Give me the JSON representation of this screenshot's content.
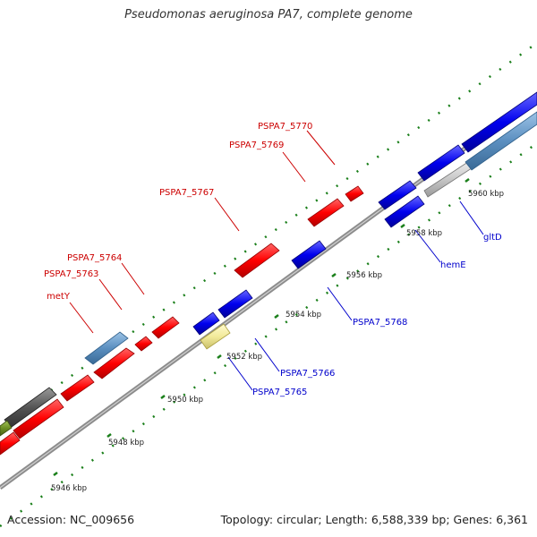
{
  "title": "Pseudomonas aeruginosa PA7, complete genome",
  "footer": {
    "accession": "Accession: NC_009656",
    "summary": "Topology: circular; Length: 6,588,339 bp; Genes: 6,361"
  },
  "colors": {
    "forward_gene": "#ff0000",
    "reverse_gene": "#0000ee",
    "steelblue_gene": "#5b8fc0",
    "grey_gene": "#555555",
    "pale_gene": "#f2ea9a",
    "olive_gene": "#6b8e23",
    "backbone": "#8c8c8c",
    "tick_dots": "#1a7f1a"
  },
  "ticks": [
    "5946 kbp",
    "5948 kbp",
    "5950 kbp",
    "5952 kbp",
    "5954 kbp",
    "5956 kbp",
    "5958 kbp",
    "5960 kbp"
  ],
  "labels": [
    {
      "text": "PSPA7_5770",
      "strand": "forward"
    },
    {
      "text": "PSPA7_5769",
      "strand": "forward"
    },
    {
      "text": "PSPA7_5767",
      "strand": "forward"
    },
    {
      "text": "PSPA7_5764",
      "strand": "forward"
    },
    {
      "text": "PSPA7_5763",
      "strand": "forward"
    },
    {
      "text": "metY",
      "strand": "forward"
    },
    {
      "text": "PSPA7_5768",
      "strand": "reverse"
    },
    {
      "text": "PSPA7_5766",
      "strand": "reverse"
    },
    {
      "text": "PSPA7_5765",
      "strand": "reverse"
    },
    {
      "text": "hemE",
      "strand": "reverse"
    },
    {
      "text": "gltD",
      "strand": "reverse"
    }
  ]
}
